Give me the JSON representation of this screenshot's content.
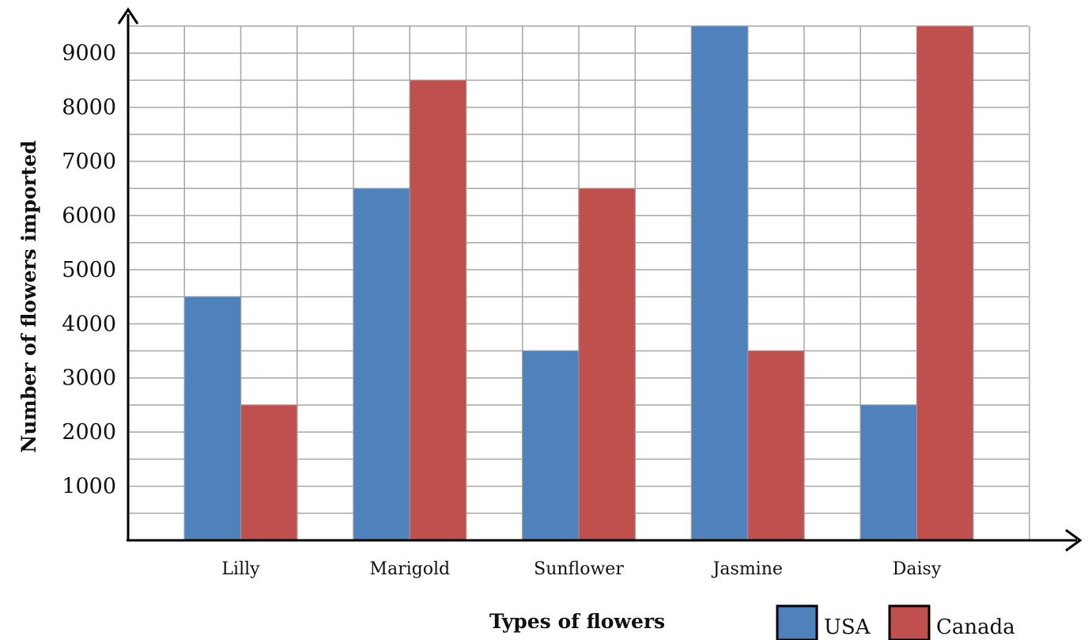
{
  "chart_data": {
    "type": "bar",
    "categories": [
      "Lilly",
      "Marigold",
      "Sunflower",
      "Jasmine",
      "Daisy"
    ],
    "series": [
      {
        "name": "USA",
        "values": [
          4500,
          6500,
          3500,
          9500,
          2500
        ],
        "color": "#4F81BD"
      },
      {
        "name": "Canada",
        "values": [
          2500,
          8500,
          6500,
          3500,
          9500
        ],
        "color": "#C0504D"
      }
    ],
    "yticks": [
      1000,
      2000,
      3000,
      4000,
      5000,
      6000,
      7000,
      8000,
      9000
    ],
    "xlabel": "Types of flowers",
    "ylabel": "Number of flowers imported",
    "ylim": [
      0,
      9500
    ],
    "grid": true,
    "legend_position": "bottom-right"
  }
}
